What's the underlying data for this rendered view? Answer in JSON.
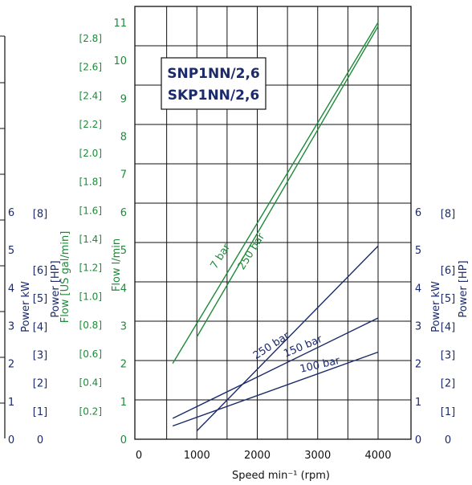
{
  "colors": {
    "flow": "#1f8a3a",
    "power": "#1b2a6b",
    "grid": "#111111"
  },
  "legend_box": {
    "line1": "SNP1NN/2,6",
    "line2": "SKP1NN/2,6"
  },
  "chart_data": {
    "type": "line",
    "title": "",
    "xlabel": "Speed min⁻¹ (rpm)",
    "x_ticks": [
      "0",
      "1000",
      "2000",
      "3000",
      "4000"
    ],
    "xlim": [
      0,
      4500
    ],
    "axes": {
      "flow_lpm": {
        "label": "Flow l/min",
        "ticks": [
          "0",
          "1",
          "2",
          "3",
          "4",
          "5",
          "6",
          "7",
          "8",
          "9",
          "10",
          "11"
        ],
        "ylim": [
          0,
          11
        ]
      },
      "flow_usgal": {
        "label": "Flow [US gal/min]",
        "ticks": [
          "[0.2]",
          "[0.4]",
          "[0.6]",
          "[0.8]",
          "[1.0]",
          "[1.2]",
          "[1.4]",
          "[1.6]",
          "[1.8]",
          "[2.0]",
          "[2.2]",
          "[2.4]",
          "[2.6]",
          "[2.8]"
        ]
      },
      "power_kw": {
        "label": "Power kW",
        "ticks": [
          "0",
          "1",
          "2",
          "3",
          "4",
          "5",
          "6"
        ]
      },
      "power_hp": {
        "label": "Power [HP]",
        "ticks": [
          "0",
          "[1]",
          "[2]",
          "[3]",
          "[4]",
          "[5]",
          "[6]",
          "[8]"
        ]
      }
    },
    "series": [
      {
        "name": "7 bar",
        "axis": "flow_lpm",
        "x": [
          600,
          4000
        ],
        "y": [
          2.0,
          11.0
        ]
      },
      {
        "name": "250 bar",
        "axis": "flow_lpm",
        "x": [
          1000,
          4000
        ],
        "y": [
          2.7,
          10.9
        ]
      },
      {
        "name": "250 bar",
        "axis": "power_kw",
        "x": [
          1000,
          4000
        ],
        "y": [
          0.22,
          5.1
        ]
      },
      {
        "name": "150 bar",
        "axis": "power_kw",
        "x": [
          600,
          4000
        ],
        "y": [
          0.55,
          3.2
        ]
      },
      {
        "name": "100 bar",
        "axis": "power_kw",
        "x": [
          600,
          4000
        ],
        "y": [
          0.35,
          2.3
        ]
      }
    ],
    "grid": true
  }
}
